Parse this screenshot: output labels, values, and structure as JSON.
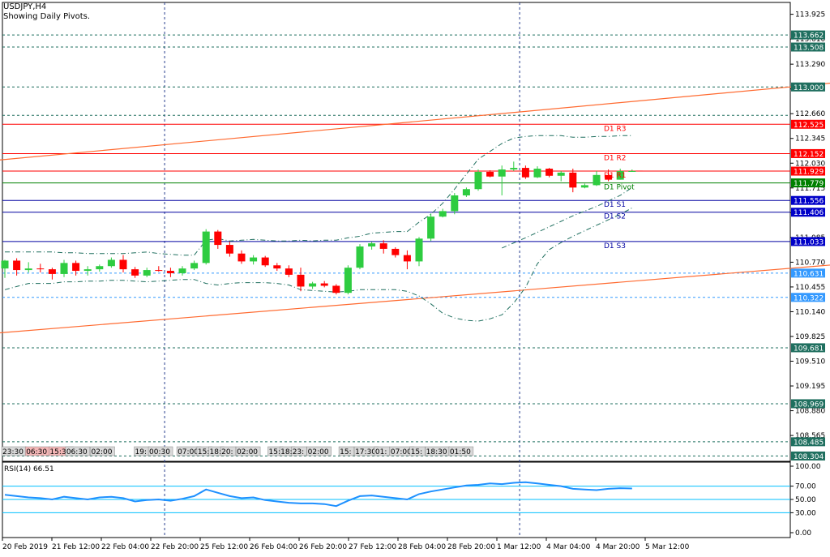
{
  "header": {
    "symbol_line": "USDJPY,H4",
    "subtitle": "Showing Daily Pivots."
  },
  "colors": {
    "bull": "#2ecc40",
    "bear": "#ff0000",
    "pivot_line": "#008000",
    "resistance_line": "#ff0000",
    "support_line": "#0000a0",
    "trend_line": "#ff6a30",
    "grid": "#1f4e79",
    "bollinger": "#1f6f5f",
    "rsi_line": "#1e90ff",
    "rsi_level": "#00bfff",
    "label_bg_blue": "#0000c8",
    "label_bg_red": "#ff0000",
    "label_bg_green": "#008000",
    "label_bg_teal": "#1f6f5f",
    "label_bg_lightblue": "#3399ff"
  },
  "chart_data": [
    {
      "type": "candlestick",
      "title": "USDJPY,H4",
      "subtitle": "Showing Daily Pivots.",
      "ylim": [
        108.304,
        113.9
      ],
      "y_ticks": [
        "113.925",
        "113.610",
        "113.290",
        "112.975",
        "112.660",
        "112.345",
        "112.030",
        "111.715",
        "111.400",
        "111.085",
        "110.770",
        "110.455",
        "110.140",
        "109.825",
        "109.510",
        "109.195",
        "108.880",
        "108.565"
      ],
      "x_ticks": [
        "20 Feb 2019",
        "21 Feb 12:00",
        "22 Feb 04:00",
        "22 Feb 20:00",
        "25 Feb 12:00",
        "26 Feb 04:00",
        "26 Feb 20:00",
        "27 Feb 12:00",
        "28 Feb 04:00",
        "28 Feb 20:00",
        "1 Mar 12:00",
        "4 Mar 04:00",
        "4 Mar 20:00",
        "5 Mar 12:00"
      ],
      "candles": [
        {
          "o": 110.69,
          "h": 110.8,
          "l": 110.57,
          "c": 110.79
        },
        {
          "o": 110.79,
          "h": 110.82,
          "l": 110.6,
          "c": 110.67
        },
        {
          "o": 110.67,
          "h": 110.77,
          "l": 110.64,
          "c": 110.69
        },
        {
          "o": 110.69,
          "h": 110.75,
          "l": 110.64,
          "c": 110.68
        },
        {
          "o": 110.68,
          "h": 110.7,
          "l": 110.55,
          "c": 110.62
        },
        {
          "o": 110.62,
          "h": 110.8,
          "l": 110.58,
          "c": 110.76
        },
        {
          "o": 110.76,
          "h": 110.79,
          "l": 110.6,
          "c": 110.66
        },
        {
          "o": 110.66,
          "h": 110.72,
          "l": 110.6,
          "c": 110.68
        },
        {
          "o": 110.68,
          "h": 110.74,
          "l": 110.65,
          "c": 110.72
        },
        {
          "o": 110.72,
          "h": 110.83,
          "l": 110.7,
          "c": 110.8
        },
        {
          "o": 110.8,
          "h": 110.86,
          "l": 110.64,
          "c": 110.68
        },
        {
          "o": 110.68,
          "h": 110.71,
          "l": 110.57,
          "c": 110.6
        },
        {
          "o": 110.6,
          "h": 110.7,
          "l": 110.58,
          "c": 110.67
        },
        {
          "o": 110.67,
          "h": 110.72,
          "l": 110.65,
          "c": 110.66
        },
        {
          "o": 110.66,
          "h": 110.7,
          "l": 110.58,
          "c": 110.63
        },
        {
          "o": 110.63,
          "h": 110.72,
          "l": 110.6,
          "c": 110.69
        },
        {
          "o": 110.69,
          "h": 110.79,
          "l": 110.67,
          "c": 110.76
        },
        {
          "o": 110.76,
          "h": 111.19,
          "l": 110.74,
          "c": 111.16
        },
        {
          "o": 111.16,
          "h": 111.18,
          "l": 110.94,
          "c": 110.99
        },
        {
          "o": 110.99,
          "h": 111.03,
          "l": 110.84,
          "c": 110.88
        },
        {
          "o": 110.88,
          "h": 110.92,
          "l": 110.75,
          "c": 110.78
        },
        {
          "o": 110.78,
          "h": 110.86,
          "l": 110.74,
          "c": 110.83
        },
        {
          "o": 110.83,
          "h": 110.85,
          "l": 110.71,
          "c": 110.73
        },
        {
          "o": 110.73,
          "h": 110.76,
          "l": 110.66,
          "c": 110.69
        },
        {
          "o": 110.69,
          "h": 110.73,
          "l": 110.58,
          "c": 110.61
        },
        {
          "o": 110.61,
          "h": 110.7,
          "l": 110.4,
          "c": 110.46
        },
        {
          "o": 110.46,
          "h": 110.52,
          "l": 110.43,
          "c": 110.5
        },
        {
          "o": 110.5,
          "h": 110.53,
          "l": 110.45,
          "c": 110.47
        },
        {
          "o": 110.47,
          "h": 110.49,
          "l": 110.36,
          "c": 110.38
        },
        {
          "o": 110.38,
          "h": 110.73,
          "l": 110.36,
          "c": 110.7
        },
        {
          "o": 110.7,
          "h": 111.0,
          "l": 110.68,
          "c": 110.97
        },
        {
          "o": 110.97,
          "h": 111.03,
          "l": 110.93,
          "c": 111.01
        },
        {
          "o": 111.01,
          "h": 111.05,
          "l": 110.88,
          "c": 110.94
        },
        {
          "o": 110.94,
          "h": 110.96,
          "l": 110.83,
          "c": 110.86
        },
        {
          "o": 110.86,
          "h": 110.92,
          "l": 110.68,
          "c": 110.78
        },
        {
          "o": 110.78,
          "h": 111.09,
          "l": 110.72,
          "c": 111.07
        },
        {
          "o": 111.07,
          "h": 111.39,
          "l": 111.04,
          "c": 111.35
        },
        {
          "o": 111.35,
          "h": 111.45,
          "l": 111.34,
          "c": 111.42
        },
        {
          "o": 111.42,
          "h": 111.65,
          "l": 111.38,
          "c": 111.62
        },
        {
          "o": 111.62,
          "h": 111.72,
          "l": 111.6,
          "c": 111.7
        },
        {
          "o": 111.7,
          "h": 111.95,
          "l": 111.68,
          "c": 111.92
        },
        {
          "o": 111.92,
          "h": 111.94,
          "l": 111.85,
          "c": 111.86
        },
        {
          "o": 111.86,
          "h": 112.0,
          "l": 111.62,
          "c": 111.95
        },
        {
          "o": 111.95,
          "h": 112.05,
          "l": 111.93,
          "c": 111.97
        },
        {
          "o": 111.97,
          "h": 112.0,
          "l": 111.83,
          "c": 111.85
        },
        {
          "o": 111.85,
          "h": 111.99,
          "l": 111.84,
          "c": 111.96
        },
        {
          "o": 111.96,
          "h": 111.97,
          "l": 111.85,
          "c": 111.87
        },
        {
          "o": 111.87,
          "h": 111.93,
          "l": 111.8,
          "c": 111.91
        },
        {
          "o": 111.91,
          "h": 111.96,
          "l": 111.66,
          "c": 111.72
        },
        {
          "o": 111.72,
          "h": 111.77,
          "l": 111.71,
          "c": 111.75
        },
        {
          "o": 111.75,
          "h": 111.93,
          "l": 111.74,
          "c": 111.88
        },
        {
          "o": 111.88,
          "h": 111.95,
          "l": 111.8,
          "c": 111.82
        },
        {
          "o": 111.82,
          "h": 111.96,
          "l": 111.82,
          "c": 111.93
        },
        {
          "o": 111.93,
          "h": 111.95,
          "l": 111.92,
          "c": 111.93
        }
      ],
      "pivot_levels": [
        {
          "name": "D1 R3",
          "value": 112.525,
          "kind": "resistance"
        },
        {
          "name": "D1 R2",
          "value": 112.152,
          "kind": "resistance"
        },
        {
          "name": "D1 R1",
          "value": 111.929,
          "kind": "resistance"
        },
        {
          "name": "D1 Pivot",
          "value": 111.779,
          "kind": "pivot"
        },
        {
          "name": "D1 S1",
          "value": 111.556,
          "kind": "support"
        },
        {
          "name": "D1 S2",
          "value": 111.406,
          "kind": "support"
        },
        {
          "name": "D1 S3",
          "value": 111.033,
          "kind": "support"
        }
      ],
      "horizontal_levels": [
        113.662,
        113.508,
        113.0,
        112.639,
        110.631,
        110.322,
        109.681,
        108.969,
        108.485,
        108.304
      ],
      "price_labels": [
        {
          "text": "113.662",
          "value": 113.662,
          "bg": "teal"
        },
        {
          "text": "113.508",
          "value": 113.508,
          "bg": "teal"
        },
        {
          "text": "113.000",
          "value": 113.0,
          "bg": "teal"
        },
        {
          "text": "112.525",
          "value": 112.525,
          "bg": "red"
        },
        {
          "text": "112.152",
          "value": 112.152,
          "bg": "red"
        },
        {
          "text": "111.929",
          "value": 111.929,
          "bg": "red"
        },
        {
          "text": "111.779",
          "value": 111.779,
          "bg": "green"
        },
        {
          "text": "111.556",
          "value": 111.556,
          "bg": "blue"
        },
        {
          "text": "111.406",
          "value": 111.406,
          "bg": "blue"
        },
        {
          "text": "111.033",
          "value": 111.033,
          "bg": "blue"
        },
        {
          "text": "110.631",
          "value": 110.631,
          "bg": "lightblue"
        },
        {
          "text": "110.322",
          "value": 110.322,
          "bg": "lightblue"
        },
        {
          "text": "109.681",
          "value": 109.681,
          "bg": "teal"
        },
        {
          "text": "108.969",
          "value": 108.969,
          "bg": "teal"
        },
        {
          "text": "108.485",
          "value": 108.485,
          "bg": "teal"
        },
        {
          "text": "108.304",
          "value": 108.304,
          "bg": "teal"
        }
      ],
      "trend_lines": [
        {
          "from": {
            "x_index": -0.5,
            "y": 112.07
          },
          "to": {
            "x_index": 73.5,
            "y": 113.1
          }
        },
        {
          "from": {
            "x_index": -0.5,
            "y": 109.87
          },
          "to": {
            "x_index": 73.5,
            "y": 110.78
          }
        }
      ],
      "bollinger_upper": [
        110.9,
        110.9,
        110.9,
        110.9,
        110.9,
        110.89,
        110.89,
        110.88,
        110.88,
        110.88,
        110.88,
        110.89,
        110.9,
        110.88,
        110.87,
        110.86,
        110.86,
        111.05,
        111.07,
        111.04,
        111.05,
        111.06,
        111.05,
        111.04,
        111.04,
        111.05,
        111.04,
        111.05,
        111.05,
        111.08,
        111.1,
        111.14,
        111.15,
        111.16,
        111.16,
        111.28,
        111.38,
        111.52,
        111.7,
        111.89,
        112.08,
        112.18,
        112.28,
        112.35,
        112.37,
        112.38,
        112.38,
        112.38,
        112.36,
        112.36,
        112.37,
        112.37,
        112.38,
        112.38
      ],
      "bollinger_lower": [
        110.42,
        110.46,
        110.5,
        110.5,
        110.5,
        110.52,
        110.52,
        110.53,
        110.53,
        110.54,
        110.54,
        110.53,
        110.52,
        110.53,
        110.54,
        110.55,
        110.55,
        110.5,
        110.48,
        110.5,
        110.51,
        110.51,
        110.51,
        110.5,
        110.48,
        110.42,
        110.41,
        110.4,
        110.39,
        110.4,
        110.42,
        110.42,
        110.42,
        110.42,
        110.4,
        110.34,
        110.24,
        110.12,
        110.06,
        110.03,
        110.02,
        110.05,
        110.1,
        110.25,
        110.45,
        110.75,
        110.93,
        111.02,
        111.1,
        111.17,
        111.24,
        111.31,
        111.38,
        111.46
      ],
      "bollinger_mid_right": [
        {
          "x_index": 42,
          "y": 110.95
        },
        {
          "x_index": 44,
          "y": 111.08
        },
        {
          "x_index": 46,
          "y": 111.22
        },
        {
          "x_index": 48,
          "y": 111.36
        },
        {
          "x_index": 50,
          "y": 111.48
        },
        {
          "x_index": 52,
          "y": 111.62
        },
        {
          "x_index": 53,
          "y": 111.72
        }
      ],
      "vertical_lines_x_index": [
        13.5,
        43.5
      ],
      "time_labels": [
        {
          "text": "23:30",
          "x_index": 0,
          "style": "grey"
        },
        {
          "text": "06:30",
          "x_index": 2,
          "style": "pink"
        },
        {
          "text": "15:30",
          "x_index": 4,
          "style": "pink"
        },
        {
          "text": "06:30",
          "x_index": 5.4,
          "style": "grey"
        },
        {
          "text": "02:00",
          "x_index": 7.5,
          "style": "grey"
        },
        {
          "text": "19:",
          "x_index": 11.2,
          "style": "grey"
        },
        {
          "text": "00:30",
          "x_index": 12.4,
          "style": "grey"
        },
        {
          "text": "07:00",
          "x_index": 14.8,
          "style": "grey"
        },
        {
          "text": "15:",
          "x_index": 16.5,
          "style": "grey"
        },
        {
          "text": "18:",
          "x_index": 17.5,
          "style": "grey"
        },
        {
          "text": "20:",
          "x_index": 18.5,
          "style": "grey"
        },
        {
          "text": "02:00",
          "x_index": 19.8,
          "style": "grey"
        },
        {
          "text": "15:",
          "x_index": 22.5,
          "style": "grey"
        },
        {
          "text": "18:",
          "x_index": 23.5,
          "style": "grey"
        },
        {
          "text": "23:",
          "x_index": 24.5,
          "style": "grey"
        },
        {
          "text": "02:00",
          "x_index": 25.8,
          "style": "grey"
        },
        {
          "text": "15:",
          "x_index": 28.5,
          "style": "grey"
        },
        {
          "text": "17:30",
          "x_index": 29.8,
          "style": "grey"
        },
        {
          "text": "01:",
          "x_index": 31.5,
          "style": "grey"
        },
        {
          "text": "07:00",
          "x_index": 32.8,
          "style": "grey"
        },
        {
          "text": "15:",
          "x_index": 34.5,
          "style": "grey"
        },
        {
          "text": "18:30",
          "x_index": 35.8,
          "style": "grey"
        },
        {
          "text": "01:50",
          "x_index": 37.8,
          "style": "grey"
        }
      ],
      "axes": {
        "xlabel": "",
        "ylabel": ""
      }
    },
    {
      "type": "line",
      "title": "RSI(14) 66.51",
      "ylim": [
        0,
        100
      ],
      "y_ticks": [
        "100.00",
        "70.00",
        "50.00",
        "30.00",
        "0.00"
      ],
      "levels": [
        70,
        50,
        30
      ],
      "values": [
        57,
        55,
        53,
        52,
        50,
        54,
        52,
        50,
        53,
        54,
        52,
        47,
        49,
        50,
        48,
        51,
        55,
        65,
        60,
        55,
        52,
        53,
        49,
        47,
        45,
        44,
        44,
        43,
        40,
        48,
        55,
        56,
        54,
        52,
        50,
        58,
        62,
        65,
        68,
        71,
        72,
        74,
        73,
        75,
        76,
        74,
        72,
        70,
        66,
        65,
        64,
        66,
        67,
        66.5
      ]
    }
  ]
}
